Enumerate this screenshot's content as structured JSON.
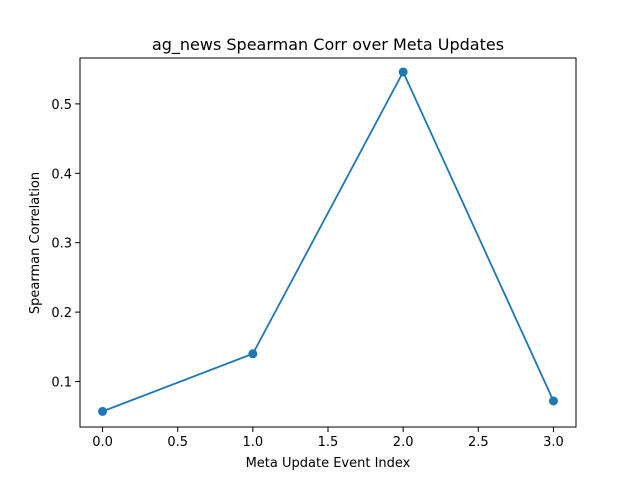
{
  "chart_data": {
    "type": "line",
    "title": "ag_news Spearman Corr over Meta Updates",
    "xlabel": "Meta Update Event Index",
    "ylabel": "Spearman Correlation",
    "x": [
      0.0,
      1.0,
      2.0,
      3.0
    ],
    "series": [
      {
        "values": [
          0.057,
          0.14,
          0.546,
          0.072
        ],
        "color": "#1f77b4",
        "marker": "circle"
      }
    ],
    "xlim": [
      -0.15,
      3.15
    ],
    "ylim": [
      0.0345,
      0.5661
    ],
    "xticks": [
      0.0,
      0.5,
      1.0,
      1.5,
      2.0,
      2.5,
      3.0
    ],
    "xtick_labels": [
      "0.0",
      "0.5",
      "1.0",
      "1.5",
      "2.0",
      "2.5",
      "3.0"
    ],
    "yticks": [
      0.1,
      0.2,
      0.3,
      0.4,
      0.5
    ],
    "ytick_labels": [
      "0.1",
      "0.2",
      "0.3",
      "0.4",
      "0.5"
    ],
    "grid": false,
    "legend": "none"
  }
}
